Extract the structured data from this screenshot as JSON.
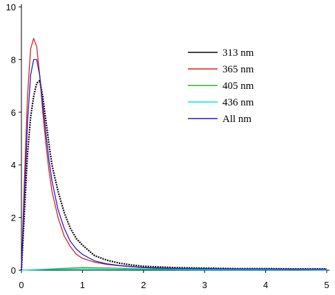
{
  "chart_data": {
    "type": "line",
    "title": "",
    "xlabel": "",
    "ylabel": "",
    "xlim": [
      0,
      5
    ],
    "ylim": [
      0,
      10
    ],
    "x_ticks": [
      "0",
      "1",
      "2",
      "3",
      "4",
      "5"
    ],
    "y_ticks": [
      "0",
      "2",
      "4",
      "6",
      "8",
      "10"
    ],
    "grid": false,
    "legend_position": "top-right",
    "series": [
      {
        "name": "313 nm",
        "color": "#000000",
        "style": "dotted",
        "x": [
          0,
          0.05,
          0.1,
          0.15,
          0.2,
          0.25,
          0.3,
          0.35,
          0.4,
          0.45,
          0.5,
          0.6,
          0.7,
          0.8,
          0.9,
          1.0,
          1.2,
          1.4,
          1.6,
          1.8,
          2.0,
          2.5,
          3.0,
          3.5,
          4.0,
          4.5,
          5.0
        ],
        "y": [
          0,
          2.2,
          4.4,
          5.8,
          6.6,
          7.1,
          7.2,
          6.6,
          5.7,
          4.8,
          4.0,
          3.0,
          2.2,
          1.6,
          1.2,
          0.95,
          0.55,
          0.38,
          0.27,
          0.2,
          0.15,
          0.1,
          0.08,
          0.06,
          0.06,
          0.05,
          0.05
        ]
      },
      {
        "name": "365 nm",
        "color": "#e0191b",
        "style": "solid",
        "x": [
          0,
          0.05,
          0.1,
          0.15,
          0.2,
          0.25,
          0.3,
          0.35,
          0.4,
          0.45,
          0.5,
          0.6,
          0.7,
          0.8,
          0.9,
          1.0,
          1.2,
          1.4,
          1.6,
          1.8,
          2.0,
          2.5,
          3.0,
          3.5,
          4.0,
          4.5,
          5.0
        ],
        "y": [
          0,
          3.5,
          6.6,
          8.4,
          8.8,
          8.5,
          7.4,
          6.0,
          4.8,
          3.8,
          3.0,
          2.0,
          1.3,
          0.9,
          0.6,
          0.45,
          0.3,
          0.22,
          0.17,
          0.13,
          0.1,
          0.07,
          0.05,
          0.05,
          0.04,
          0.04,
          0.03
        ]
      },
      {
        "name": "405 nm",
        "color": "#22b822",
        "style": "solid",
        "x": [
          0,
          0.5,
          1.0,
          1.5,
          2.0,
          2.5,
          3.0,
          3.5,
          4.0,
          4.5,
          5.0
        ],
        "y": [
          0,
          0.05,
          0.1,
          0.08,
          0.05,
          0.06,
          0.05,
          0.05,
          0.04,
          0.04,
          0.03
        ]
      },
      {
        "name": "436 nm",
        "color": "#00e0e0",
        "style": "solid",
        "x": [
          0,
          0.5,
          1.0,
          1.5,
          2.0,
          2.5,
          3.0,
          3.5,
          4.0,
          4.5,
          5.0
        ],
        "y": [
          0,
          0.03,
          0.05,
          0.04,
          0.03,
          0.03,
          0.02,
          0.02,
          0.02,
          0.02,
          0.01
        ]
      },
      {
        "name": "All  nm",
        "color": "#1c1cc8",
        "style": "solid",
        "x": [
          0,
          0.05,
          0.1,
          0.15,
          0.2,
          0.25,
          0.3,
          0.35,
          0.4,
          0.45,
          0.5,
          0.6,
          0.7,
          0.8,
          0.9,
          1.0,
          1.2,
          1.4,
          1.6,
          1.8,
          2.0,
          2.5,
          3.0,
          3.5,
          4.0,
          4.5,
          5.0
        ],
        "y": [
          0,
          2.8,
          5.6,
          7.4,
          8.0,
          8.0,
          7.4,
          6.3,
          5.2,
          4.2,
          3.4,
          2.3,
          1.6,
          1.1,
          0.8,
          0.6,
          0.35,
          0.24,
          0.18,
          0.14,
          0.1,
          0.07,
          0.06,
          0.05,
          0.05,
          0.04,
          0.04
        ]
      }
    ]
  }
}
